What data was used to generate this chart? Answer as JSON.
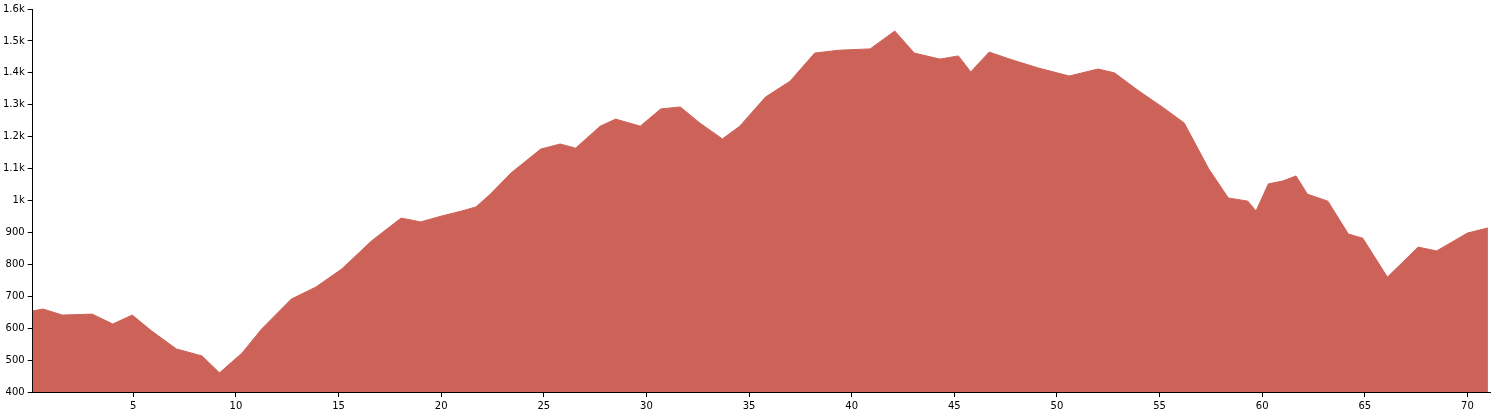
{
  "chart_data": {
    "type": "area",
    "color": "#cd6358",
    "x": [
      0.1,
      0.6,
      1.55,
      3.0,
      4.0,
      4.95,
      5.9,
      7.1,
      8.35,
      9.2,
      10.3,
      11.25,
      12.7,
      13.9,
      15.15,
      16.6,
      18.05,
      19.0,
      20.0,
      21.0,
      21.7,
      22.4,
      23.4,
      24.85,
      25.8,
      26.55,
      27.75,
      28.5,
      29.7,
      30.7,
      31.65,
      32.6,
      33.7,
      34.55,
      35.8,
      37.0,
      38.2,
      39.4,
      40.9,
      42.1,
      43.05,
      44.3,
      45.2,
      45.8,
      46.7,
      47.7,
      49.1,
      50.6,
      52.0,
      52.8,
      54.0,
      55.2,
      56.2,
      57.4,
      58.35,
      59.3,
      59.7,
      60.3,
      61.0,
      61.65,
      62.2,
      63.2,
      64.2,
      64.9,
      66.1,
      67.6,
      68.5,
      70.0,
      71.0
    ],
    "values": [
      654,
      660,
      641,
      644,
      613,
      641,
      591,
      535,
      513,
      460,
      522,
      597,
      691,
      729,
      785,
      873,
      945,
      933,
      951,
      967,
      980,
      1020,
      1086,
      1161,
      1177,
      1164,
      1233,
      1255,
      1233,
      1287,
      1293,
      1243,
      1193,
      1233,
      1324,
      1374,
      1462,
      1471,
      1475,
      1531,
      1462,
      1443,
      1453,
      1403,
      1465,
      1443,
      1415,
      1390,
      1412,
      1400,
      1343,
      1290,
      1243,
      1099,
      1008,
      998,
      967,
      1052,
      1061,
      1077,
      1020,
      998,
      895,
      882,
      760,
      854,
      842,
      898,
      914
    ],
    "xlim": [
      0.1,
      71.1
    ],
    "xticks": [
      5,
      10,
      15,
      20,
      25,
      30,
      35,
      40,
      45,
      50,
      55,
      60,
      65,
      70
    ],
    "ylim": [
      400,
      1600
    ],
    "yticks": [
      400,
      500,
      600,
      700,
      800,
      900,
      {
        "value": 1000,
        "label": "1k"
      },
      {
        "value": 1100,
        "label": "1.1k"
      },
      {
        "value": 1200,
        "label": "1.2k"
      },
      {
        "value": 1300,
        "label": "1.3k"
      },
      {
        "value": 1400,
        "label": "1.4k"
      },
      {
        "value": 1500,
        "label": "1.5k"
      },
      {
        "value": 1600,
        "label": "1.6k"
      }
    ],
    "grid": false,
    "legend": false,
    "marker": "none"
  }
}
